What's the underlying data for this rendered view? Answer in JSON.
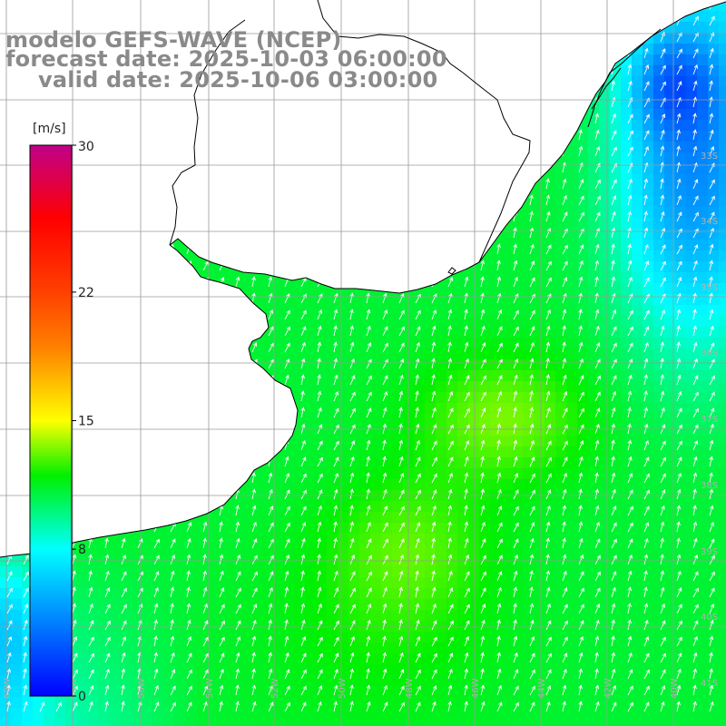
{
  "map": {
    "title_line_1": "modelo GEFS-WAVE (NCEP)",
    "title_line_2": "forecast date: 2025-10-03 06:00:00",
    "title_line_3": "valid date: 2025-10-06 03:00:00",
    "variable": "wind speed and direction",
    "region": "Rio de la Plata and south-west Atlantic",
    "colors": {
      "land": "#ffffff",
      "coastline": "#000000",
      "graticule": "#9a9a9a",
      "arrows": "#ffffff"
    },
    "wind_direction_field": "arrows pointing north-north-east",
    "scale_note": "values interpolated from colour scale"
  },
  "colorbar": {
    "unit_label": "[m/s]",
    "min": 0,
    "max": 30,
    "tick_labels": [
      "30",
      "22",
      "15",
      "8",
      "0"
    ],
    "tick_values": [
      30,
      22,
      15,
      8,
      0
    ],
    "stops": [
      {
        "value": 0,
        "color": "#0000ff"
      },
      {
        "value": 4,
        "color": "#0080ff"
      },
      {
        "value": 8,
        "color": "#00ffff"
      },
      {
        "value": 12,
        "color": "#00f000"
      },
      {
        "value": 15,
        "color": "#ffff00"
      },
      {
        "value": 19,
        "color": "#ff8000"
      },
      {
        "value": 22,
        "color": "#ff4000"
      },
      {
        "value": 26,
        "color": "#ff0000"
      },
      {
        "value": 30,
        "color": "#c0008a"
      }
    ]
  },
  "graticule_labels": {
    "longitudes": [
      "60W",
      "58W",
      "56W",
      "54W",
      "52W",
      "50W",
      "48W",
      "46W",
      "44W",
      "42W",
      "40W"
    ],
    "latitudes": [
      "33S",
      "34S",
      "35S",
      "36S",
      "37S",
      "38S",
      "39S",
      "40S",
      "41S"
    ]
  }
}
